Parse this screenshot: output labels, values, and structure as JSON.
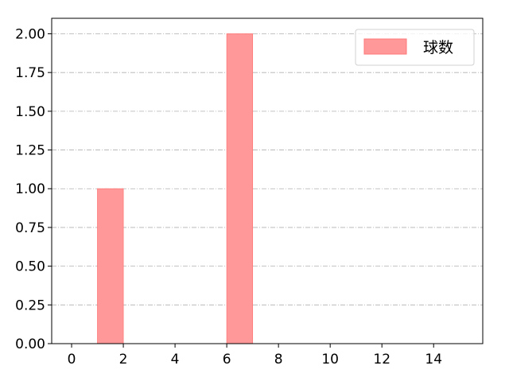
{
  "chart_data": {
    "type": "bar",
    "title": "",
    "xlabel": "",
    "ylabel": "",
    "bars": [
      {
        "x_start": 1,
        "x_end": 2,
        "value": 1
      },
      {
        "x_start": 6,
        "x_end": 7,
        "value": 2
      }
    ],
    "xlim": [
      -0.77,
      15.9
    ],
    "ylim": [
      0,
      2.1
    ],
    "xticks": [
      0,
      2,
      4,
      6,
      8,
      10,
      12,
      14
    ],
    "xtick_labels": [
      "0",
      "2",
      "4",
      "6",
      "8",
      "10",
      "12",
      "14"
    ],
    "yticks": [
      0,
      0.25,
      0.5,
      0.75,
      1.0,
      1.25,
      1.5,
      1.75,
      2.0
    ],
    "ytick_labels": [
      "0.00",
      "0.25",
      "0.50",
      "0.75",
      "1.00",
      "1.25",
      "1.50",
      "1.75",
      "2.00"
    ],
    "grid": "y-dashdot",
    "legend": {
      "placement": "top-right",
      "entries": [
        "球数"
      ]
    },
    "colors": {
      "bar": "#ff9999",
      "bar_edge": "#ff7777",
      "grid": "#b0b0b0"
    }
  }
}
